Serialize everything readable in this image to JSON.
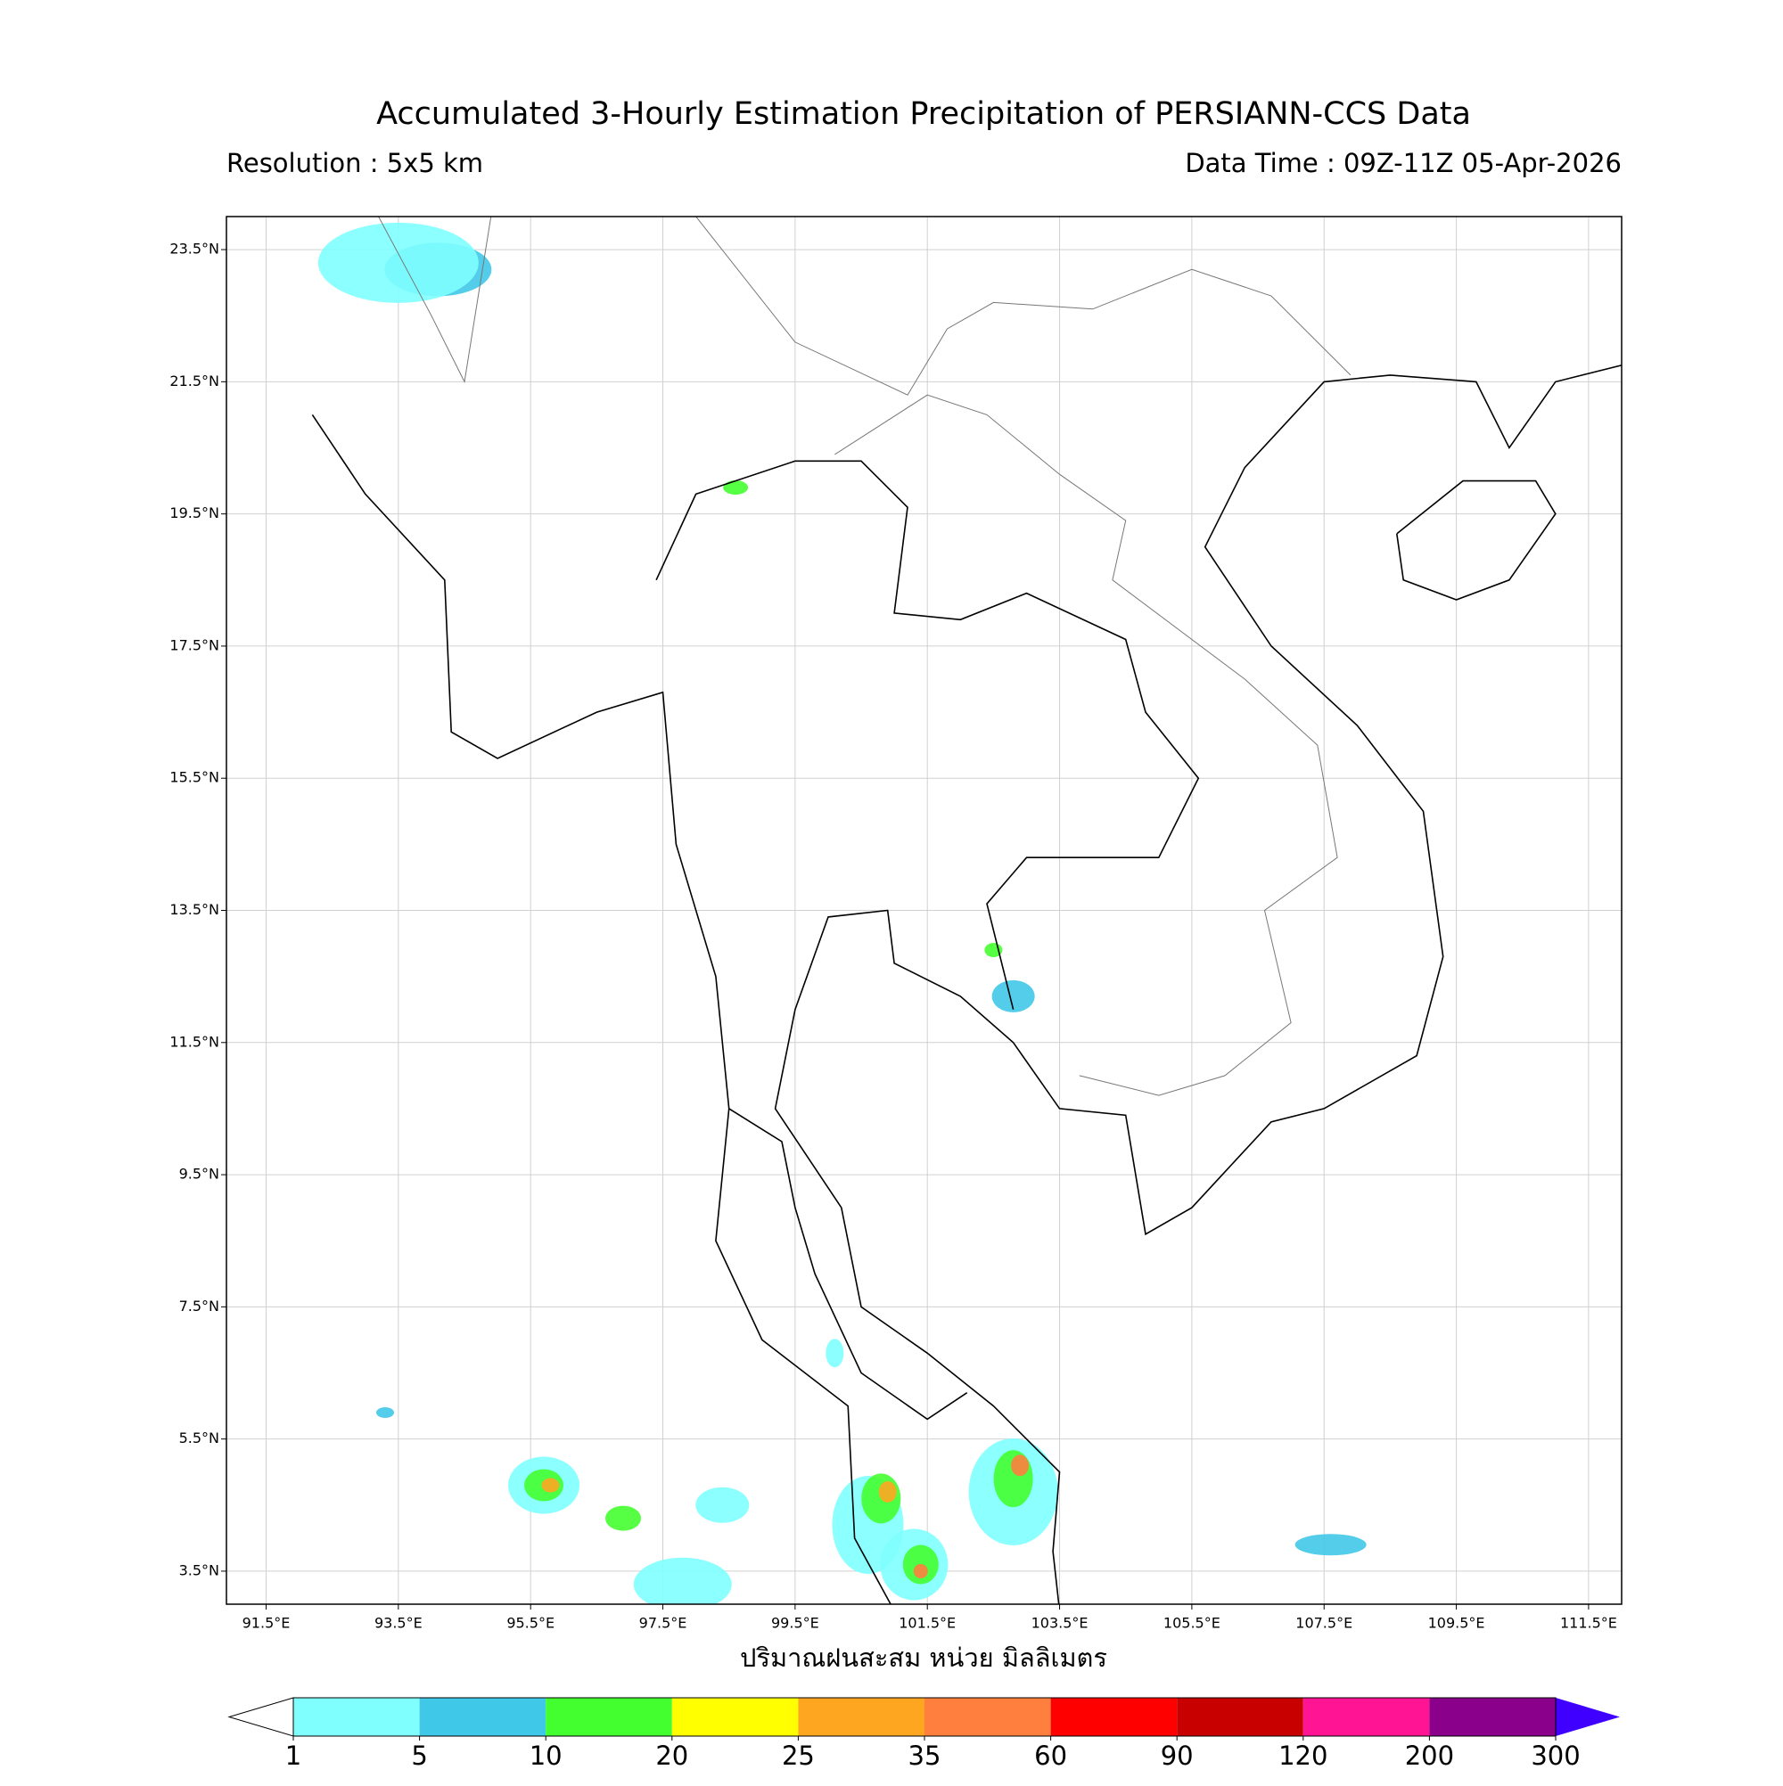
{
  "header": {
    "title": "Accumulated 3-Hourly Estimation Precipitation of PERSIANN-CCS Data",
    "resolution": "Resolution : 5x5 km",
    "data_time": "Data Time : 09Z-11Z 05-Apr-2026"
  },
  "map": {
    "lon_range": [
      90.9,
      112.0
    ],
    "lat_range": [
      3.0,
      24.0
    ],
    "lon_ticks": [
      {
        "value": 91.5,
        "label": "91.5°E"
      },
      {
        "value": 93.5,
        "label": "93.5°E"
      },
      {
        "value": 95.5,
        "label": "95.5°E"
      },
      {
        "value": 97.5,
        "label": "97.5°E"
      },
      {
        "value": 99.5,
        "label": "99.5°E"
      },
      {
        "value": 101.5,
        "label": "101.5°E"
      },
      {
        "value": 103.5,
        "label": "103.5°E"
      },
      {
        "value": 105.5,
        "label": "105.5°E"
      },
      {
        "value": 107.5,
        "label": "107.5°E"
      },
      {
        "value": 109.5,
        "label": "109.5°E"
      },
      {
        "value": 111.5,
        "label": "111.5°E"
      }
    ],
    "lat_ticks": [
      {
        "value": 3.5,
        "label": "3.5°N"
      },
      {
        "value": 5.5,
        "label": "5.5°N"
      },
      {
        "value": 7.5,
        "label": "7.5°N"
      },
      {
        "value": 9.5,
        "label": "9.5°N"
      },
      {
        "value": 11.5,
        "label": "11.5°N"
      },
      {
        "value": 13.5,
        "label": "13.5°N"
      },
      {
        "value": 15.5,
        "label": "15.5°N"
      },
      {
        "value": 17.5,
        "label": "17.5°N"
      },
      {
        "value": 19.5,
        "label": "19.5°N"
      },
      {
        "value": 21.5,
        "label": "21.5°N"
      },
      {
        "value": 23.5,
        "label": "23.5°N"
      }
    ],
    "grid": true
  },
  "colorbar": {
    "label": "ปริมาณฝนสะสม หน่วย มิลลิเมตร",
    "bounds": [
      1,
      5,
      10,
      20,
      25,
      35,
      60,
      90,
      120,
      200,
      300
    ],
    "colors": [
      "#ffffff",
      "#80ffff",
      "#40c8e8",
      "#44ff30",
      "#ffff00",
      "#ffa621",
      "#ff7f3f",
      "#ff0000",
      "#c80000",
      "#ff1493",
      "#8b008b",
      "#3f00ff"
    ]
  }
}
